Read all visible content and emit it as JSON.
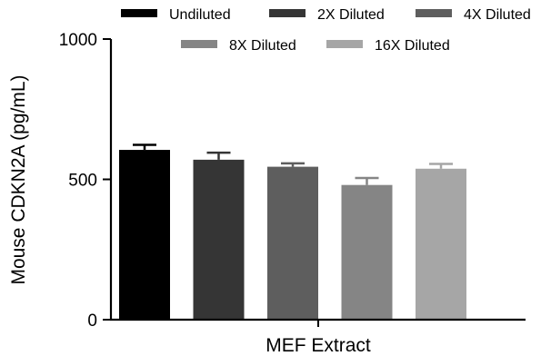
{
  "chart_data": {
    "type": "bar",
    "title": "",
    "xlabel": "MEF Extract",
    "ylabel": "Mouse CDKN2A (pg/mL)",
    "ylim": [
      0,
      1000
    ],
    "yticks": [
      0,
      500,
      1000
    ],
    "categories": [
      "MEF Extract"
    ],
    "legend_position": "top",
    "grid": false,
    "series": [
      {
        "name": "Undiluted",
        "value": 605,
        "error": 18,
        "color": "#000000"
      },
      {
        "name": "2X Diluted",
        "value": 570,
        "error": 25,
        "color": "#353535"
      },
      {
        "name": "4X Diluted",
        "value": 545,
        "error": 12,
        "color": "#5e5e5e"
      },
      {
        "name": "8X Diluted",
        "value": 480,
        "error": 25,
        "color": "#858585"
      },
      {
        "name": "16X Diluted",
        "value": 538,
        "error": 17,
        "color": "#a6a6a6"
      }
    ]
  }
}
